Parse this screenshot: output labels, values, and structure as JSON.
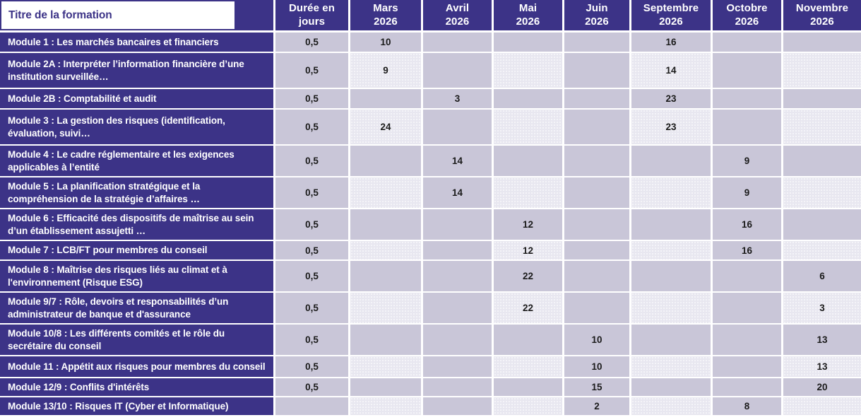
{
  "header": {
    "title_column": "Titre de la formation",
    "duration_column": "Durée en\njours",
    "months": [
      "Mars\n2026",
      "Avril\n2026",
      "Mai\n2026",
      "Juin\n2026",
      "Septembre\n2026",
      "Octobre\n2026",
      "Novembre\n2026"
    ]
  },
  "colors": {
    "purple": "#3c3387",
    "cell_medium": "#c9c6d8",
    "cell_light": "#e8e7f0",
    "header_text": "#ffffff",
    "value_text": "#1b1b1b"
  },
  "rows": [
    {
      "title": "Module 1 : Les marchés bancaires et financiers",
      "duration": "0,5",
      "values": {
        "mars": "10",
        "septembre": "16"
      }
    },
    {
      "title": "Module 2A : Interpréter l’information financière d’une institution surveillée…",
      "duration": "0,5",
      "values": {
        "mars": "9",
        "septembre": "14"
      }
    },
    {
      "title": "Module 2B : Comptabilité et audit",
      "duration": "0,5",
      "values": {
        "avril": "3",
        "septembre": "23"
      }
    },
    {
      "title": "Module 3 : La gestion des risques (identification, évaluation, suivi…",
      "duration": "0,5",
      "values": {
        "mars": "24",
        "septembre": "23"
      }
    },
    {
      "title": "Module 4 : Le cadre réglementaire et les exigences applicables à l’entité",
      "duration": "0,5",
      "values": {
        "avril": "14",
        "octobre": "9"
      }
    },
    {
      "title": "Module 5 : La planification stratégique et la compréhension de la stratégie d’affaires …",
      "duration": "0,5",
      "values": {
        "avril": "14",
        "octobre": "9"
      }
    },
    {
      "title": "Module 6 : Efficacité des dispositifs de maîtrise au sein d’un établissement assujetti …",
      "duration": "0,5",
      "values": {
        "mai": "12",
        "octobre": "16"
      }
    },
    {
      "title": "Module 7 : LCB/FT pour membres du conseil",
      "duration": "0,5",
      "values": {
        "mai": "12",
        "octobre": "16"
      }
    },
    {
      "title": "Module 8 : Maîtrise des risques liés au climat et à l'environnement (Risque ESG)",
      "duration": "0,5",
      "values": {
        "mai": "22",
        "novembre": "6"
      }
    },
    {
      "title": "Module 9/7 : Rôle, devoirs et responsabilités d’un administrateur de banque et d'assurance",
      "duration": "0,5",
      "values": {
        "mai": "22",
        "novembre": "3"
      }
    },
    {
      "title": "Module 10/8 : Les différents comités et le rôle du secrétaire du conseil",
      "duration": "0,5",
      "values": {
        "juin": "10",
        "novembre": "13"
      }
    },
    {
      "title": "Module 11 : Appétit aux risques pour membres du conseil",
      "duration": "0,5",
      "values": {
        "juin": "10",
        "novembre": "13"
      }
    },
    {
      "title": "Module 12/9 : Conflits d'intérêts",
      "duration": "0,5",
      "values": {
        "juin": "15",
        "novembre": "20"
      }
    },
    {
      "title": "Module 13/10 : Risques IT (Cyber et Informatique)",
      "duration": "",
      "values": {
        "juin": "2",
        "octobre": "8"
      }
    }
  ]
}
